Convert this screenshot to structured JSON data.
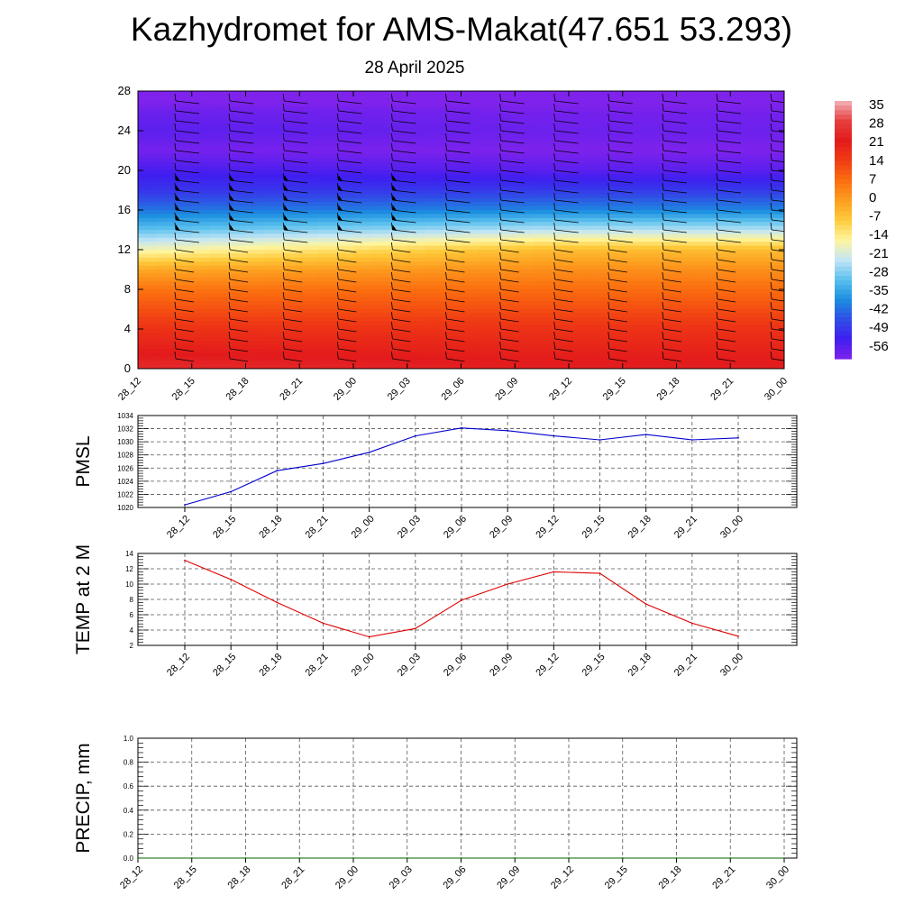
{
  "header": {
    "title": "Kazhydromet for AMS-Makat(47.651 53.293)",
    "subtitle": "28 April 2025"
  },
  "chart_data": [
    {
      "type": "heatmap",
      "name": "temperature-wind-cross-section",
      "x_ticks": [
        "28_12",
        "28_15",
        "28_18",
        "28_21",
        "29_00",
        "29_03",
        "29_06",
        "29_09",
        "29_12",
        "29_15",
        "29_18",
        "29_21",
        "30_00"
      ],
      "y_ticks": [
        0,
        4,
        8,
        12,
        16,
        20,
        24,
        28
      ],
      "ylim": [
        0,
        28
      ],
      "colorbar": {
        "labels": [
          "35",
          "28",
          "21",
          "14",
          "7",
          "0",
          "-7",
          "-14",
          "-21",
          "-28",
          "-35",
          "-42",
          "-49",
          "-56"
        ],
        "colors": [
          "#f3b3b8",
          "#e6403f",
          "#e31a1c",
          "#f03c14",
          "#fb6d0f",
          "#fd9d1f",
          "#feca3a",
          "#fff59c",
          "#c4e6f4",
          "#5cc1ee",
          "#1b8fe0",
          "#2f4fe6",
          "#3f1ef0",
          "#7e22ec"
        ]
      },
      "temperature_profile": {
        "heights": [
          0,
          4,
          8,
          10,
          12,
          14,
          16,
          18,
          20,
          22,
          24,
          26,
          28
        ],
        "values_start": [
          24,
          16,
          6,
          -2,
          -16,
          -28,
          -38,
          -46,
          -50,
          -55,
          -52,
          -54,
          -59
        ],
        "values_end": [
          22,
          16,
          7,
          2,
          -5,
          -22,
          -36,
          -45,
          -52,
          -56,
          -54,
          -55,
          -59
        ]
      },
      "wind_barb_columns": 13,
      "wind_barb_levels": [
        1,
        2,
        3,
        4,
        5,
        6,
        7,
        8,
        9,
        10,
        11,
        12,
        13,
        14,
        15,
        16,
        17,
        18,
        19,
        20,
        21,
        22,
        23,
        24,
        25,
        26,
        27
      ]
    },
    {
      "type": "line",
      "name": "pmsl",
      "ylabel": "PMSL",
      "ylim": [
        1020,
        1034
      ],
      "y_ticks": [
        1020,
        1022,
        1024,
        1026,
        1028,
        1030,
        1032,
        1034
      ],
      "categories": [
        "28_12",
        "28_15",
        "28_18",
        "28_21",
        "29_00",
        "29_03",
        "29_06",
        "29_09",
        "29_12",
        "29_15",
        "29_18",
        "29_21",
        "30_00"
      ],
      "values": [
        1020.4,
        1022.4,
        1025.6,
        1026.7,
        1028.4,
        1030.9,
        1032.1,
        1031.7,
        1030.9,
        1030.3,
        1031.1,
        1030.3,
        1030.6
      ],
      "color": "#0000cc"
    },
    {
      "type": "line",
      "name": "temp-2m",
      "ylabel": "TEMP at 2 M",
      "ylim": [
        2,
        14
      ],
      "y_ticks": [
        2,
        4,
        6,
        8,
        10,
        12,
        14
      ],
      "categories": [
        "28_12",
        "28_15",
        "28_18",
        "28_21",
        "29_00",
        "29_03",
        "29_06",
        "29_09",
        "29_12",
        "29_15",
        "29_18",
        "29_21",
        "30_00"
      ],
      "values": [
        13.1,
        10.6,
        7.6,
        4.9,
        3.1,
        4.2,
        7.9,
        10.0,
        11.6,
        11.4,
        7.4,
        4.9,
        3.2
      ],
      "color": "#e00000"
    },
    {
      "type": "line",
      "name": "precip",
      "ylabel": "PRECIP, mm",
      "ylim": [
        0,
        1
      ],
      "y_ticks": [
        "0.0",
        "0.2",
        "0.4",
        "0.6",
        "0.8",
        "1.0"
      ],
      "categories": [
        "28_12",
        "28_15",
        "28_18",
        "28_21",
        "29_00",
        "29_03",
        "29_06",
        "29_09",
        "29_12",
        "29_15",
        "29_18",
        "29_21",
        "30_00"
      ],
      "values": [
        0,
        0,
        0,
        0,
        0,
        0,
        0,
        0,
        0,
        0,
        0,
        0,
        0
      ],
      "color": "#006400"
    }
  ]
}
